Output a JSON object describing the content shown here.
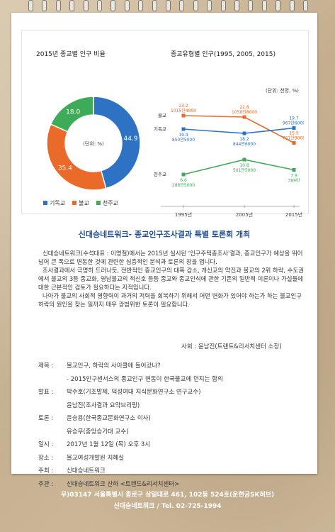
{
  "charts": {
    "pie": {
      "title": "2015년 종교별 인구 비율",
      "center_label": "(단위: %)",
      "values": [
        {
          "label": "44.9",
          "value": 44.9,
          "color": "#2d72c3"
        },
        {
          "label": "35.4",
          "value": 35.4,
          "color": "#ea6a2a"
        },
        {
          "label": "18.0",
          "value": 18.0,
          "color": "#3eab58"
        }
      ],
      "legend": [
        {
          "label": "기독교",
          "color": "#2d72c3"
        },
        {
          "label": "불교",
          "color": "#ea6a2a"
        },
        {
          "label": "천주교",
          "color": "#3eab58"
        }
      ]
    },
    "line": {
      "title": "종교유형별 인구(1995, 2005, 2015)",
      "unit": "(단위: 천명, %)",
      "x_labels": [
        "1995년",
        "2005년",
        "2015년"
      ],
      "series": [
        {
          "name": "불교",
          "color": "#ea6a2a",
          "values": [
            23.2,
            22.8,
            15.5
          ],
          "labels": [
            [
              "23.2",
              "1015만4000"
            ],
            [
              "22.8",
              "1058만8000"
            ],
            [
              "15.5",
              "761만9000"
            ]
          ]
        },
        {
          "name": "기독교",
          "color": "#2d72c3",
          "values": [
            19.4,
            18.2,
            19.7
          ],
          "labels": [
            [
              "19.4",
              "850만5000"
            ],
            [
              "18.2",
              "844만6000"
            ],
            [
              "19.7",
              "967만6000"
            ]
          ]
        },
        {
          "name": "천주교",
          "color": "#3eab58",
          "values": [
            6.6,
            10.8,
            7.9
          ],
          "labels": [
            [
              "6.6",
              "288만5000"
            ],
            [
              "10.8",
              "501만5000"
            ],
            [
              "7.9",
              "389만"
            ]
          ]
        }
      ]
    }
  },
  "title": "신대승네트워크- 종교인구조사결과 특별 토론회 개최",
  "paragraphs": [
    "신대승네트워크(수석대표 : 이영철)에서는 2015년 실시된 '인구주택총조사'결과, 종교인구가 예상을 뛰어넘어 큰 폭으로 변동한 것에 관련한 심층적인 분석과 토론의 장을 엽니다.",
    "조사결과에서 극명히 드러나듯, 전반적인 종교인구의 대폭 감소, 개신교의 약진과 불교의 2위 하락, 수도권에서 불교의 3등 종교화, 영남불교의 적신호 등등 종교와 종교인식에 관한 기존의 일반적 이론이나 가설들에 대한 근본적인 검토가 필요하다는 지적입니다.",
    "나아가 불교의 사회적 영향력이 과거의 저력을 회복하기 위해서 어떤 변화가 있어야 하는가 하는 불교인구 하락의 원인을 찾는 일까지 매우 광범위한 토론이 필요합니다."
  ],
  "moderator": "사회 : 윤남진(트랜트&리서치센터 소장)",
  "details": [
    {
      "label": "제목 :",
      "lines": [
        "불교인구, 하락의 사이클에 들어갔나?",
        "- 2015인구센서스의 종교인구 변동이 한국불교에 던지는 함의"
      ]
    },
    {
      "label": "발표 :",
      "lines": [
        "박수호(기조발제, 덕성여대 지식문화연구소 연구교수)",
        "윤남진(조사결과 요약브리핑)"
      ]
    },
    {
      "label": "토론 :",
      "lines": [
        "윤승용(한국종교문화연구소 이사)",
        "유승무(중앙승가대 교수)"
      ]
    },
    {
      "label": "일시 :",
      "lines": [
        "2017년 1월 12일 (목) 오후 3시"
      ]
    },
    {
      "label": "장소 :",
      "lines": [
        "불교여성개발원 지혜실"
      ]
    },
    {
      "label": "주최 :",
      "lines": [
        "신대승네트워크"
      ]
    },
    {
      "label": "주관 :",
      "lines": [
        "신대승네트워크 산하 <트렌드&리서치센터>"
      ]
    }
  ],
  "footer": {
    "address": "우)03147 서울특별시 종로구 삼일대로 461, 102동 524호(운현궁SK허브)",
    "contact": "신대승네트워크 / Tel. 02-725-1994"
  }
}
